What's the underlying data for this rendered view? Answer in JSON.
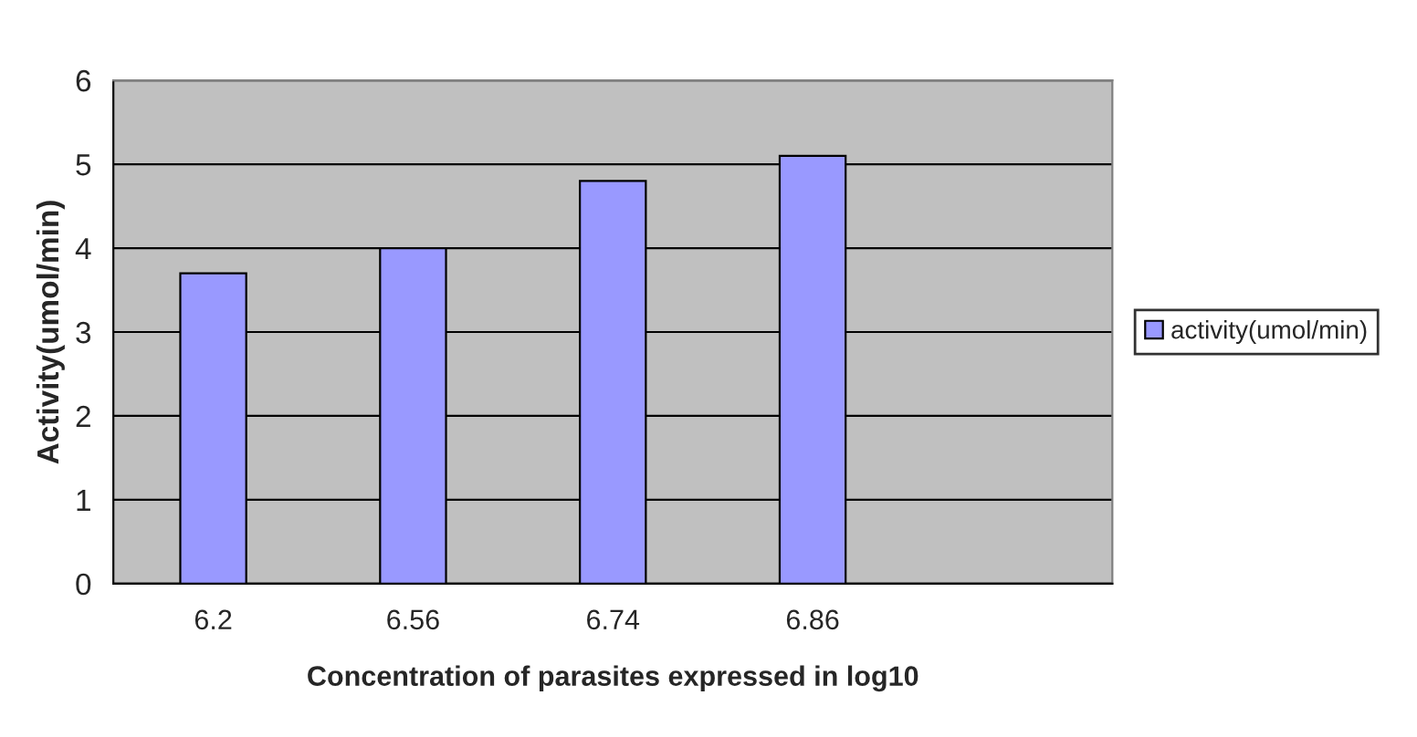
{
  "chart_data": {
    "type": "bar",
    "xlabel": "Concentration of parasites expressed in log10",
    "ylabel": "Activity(umol/min)",
    "categories": [
      "6.2",
      "6.56",
      "6.74",
      "6.86",
      null
    ],
    "series": [
      {
        "name": "activity(umol/min)",
        "color": "#9999ff",
        "values": [
          3.7,
          4.0,
          4.8,
          5.1,
          null
        ]
      }
    ],
    "ylim": [
      0,
      6
    ],
    "yticks": [
      0,
      1,
      2,
      3,
      4,
      5,
      6
    ],
    "grid": "y",
    "legend": "right"
  }
}
